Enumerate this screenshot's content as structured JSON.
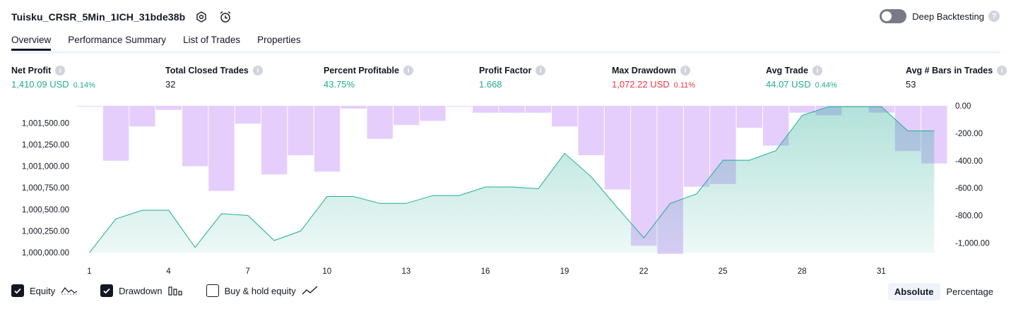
{
  "header": {
    "title": "Tuisku_CRSR_5Min_1ICH_31bde38b",
    "settings_icon": "hexagon-gear-icon",
    "alert_icon": "alarm-clock-plus-icon"
  },
  "deep_backtesting": {
    "label": "Deep Backtesting",
    "enabled": false,
    "help": "?"
  },
  "tabs": [
    {
      "label": "Overview",
      "active": true
    },
    {
      "label": "Performance Summary",
      "active": false
    },
    {
      "label": "List of Trades",
      "active": false
    },
    {
      "label": "Properties",
      "active": false
    }
  ],
  "metrics": {
    "net_profit": {
      "label": "Net Profit",
      "value": "1,410.09 USD",
      "pct": "0.14%"
    },
    "total_closed_trades": {
      "label": "Total Closed Trades",
      "value": "32"
    },
    "percent_profitable": {
      "label": "Percent Profitable",
      "value": "43.75%"
    },
    "profit_factor": {
      "label": "Profit Factor",
      "value": "1.668"
    },
    "max_drawdown": {
      "label": "Max Drawdown",
      "value": "1,072.22 USD",
      "pct": "0.11%"
    },
    "avg_trade": {
      "label": "Avg Trade",
      "value": "44.07 USD",
      "pct": "0.44%"
    },
    "avg_bars": {
      "label": "Avg # Bars in Trades",
      "value": "53"
    }
  },
  "colors": {
    "equity_line": "#22ab94",
    "equity_fill": "#d5f0eb",
    "drawdown_bar": "#e0c6fb",
    "positive": "#22ab94",
    "negative": "#f23645"
  },
  "chart_data": {
    "type": "area",
    "x": [
      1,
      2,
      3,
      4,
      5,
      6,
      7,
      8,
      9,
      10,
      11,
      12,
      13,
      14,
      15,
      16,
      17,
      18,
      19,
      20,
      21,
      22,
      23,
      24,
      25,
      26,
      27,
      28,
      29,
      30,
      31,
      32,
      33
    ],
    "x_tick_labels": [
      "1",
      "4",
      "7",
      "10",
      "13",
      "16",
      "19",
      "22",
      "25",
      "28",
      "31"
    ],
    "series": [
      {
        "name": "Equity",
        "axis": "left",
        "values": [
          1000000,
          1000390,
          1000490,
          1000490,
          1000060,
          1000450,
          1000430,
          1000140,
          1000250,
          1000650,
          1000650,
          1000570,
          1000570,
          1000660,
          1000660,
          1000760,
          1000760,
          1000740,
          1001150,
          1000880,
          1000520,
          1000170,
          1000570,
          1000680,
          1001070,
          1001070,
          1001180,
          1001590,
          1001690,
          1001690,
          1001690,
          1001410,
          1001410
        ]
      },
      {
        "name": "Drawdown",
        "axis": "right",
        "values": [
          0,
          -400,
          -150,
          -30,
          -440,
          -620,
          -130,
          -500,
          -360,
          -480,
          -20,
          -240,
          -140,
          -110,
          0,
          -50,
          -50,
          -50,
          -150,
          -360,
          -610,
          -1020,
          -1080,
          -590,
          -570,
          -160,
          -290,
          -50,
          -70,
          0,
          -50,
          -330,
          -420
        ]
      }
    ],
    "ylim_left": [
      1000000,
      1001700
    ],
    "ylim_right": [
      -1080,
      0
    ],
    "y_left_ticks": [
      "1,000,000.00",
      "1,000,250.00",
      "1,000,500.00",
      "1,000,750.00",
      "1,001,000.00",
      "1,001,250.00",
      "1,001,500.00"
    ],
    "y_right_ticks": [
      "0.00",
      "-200.00",
      "-400.00",
      "-600.00",
      "-800.00",
      "-1,000.00"
    ],
    "grid": false
  },
  "legend": [
    {
      "label": "Equity",
      "checked": true,
      "icon": "equity-line-icon"
    },
    {
      "label": "Drawdown",
      "checked": true,
      "icon": "drawdown-bars-icon"
    },
    {
      "label": "Buy & hold equity",
      "checked": false,
      "icon": "buy-hold-line-icon"
    }
  ],
  "modes": [
    {
      "label": "Absolute",
      "active": true
    },
    {
      "label": "Percentage",
      "active": false
    }
  ]
}
